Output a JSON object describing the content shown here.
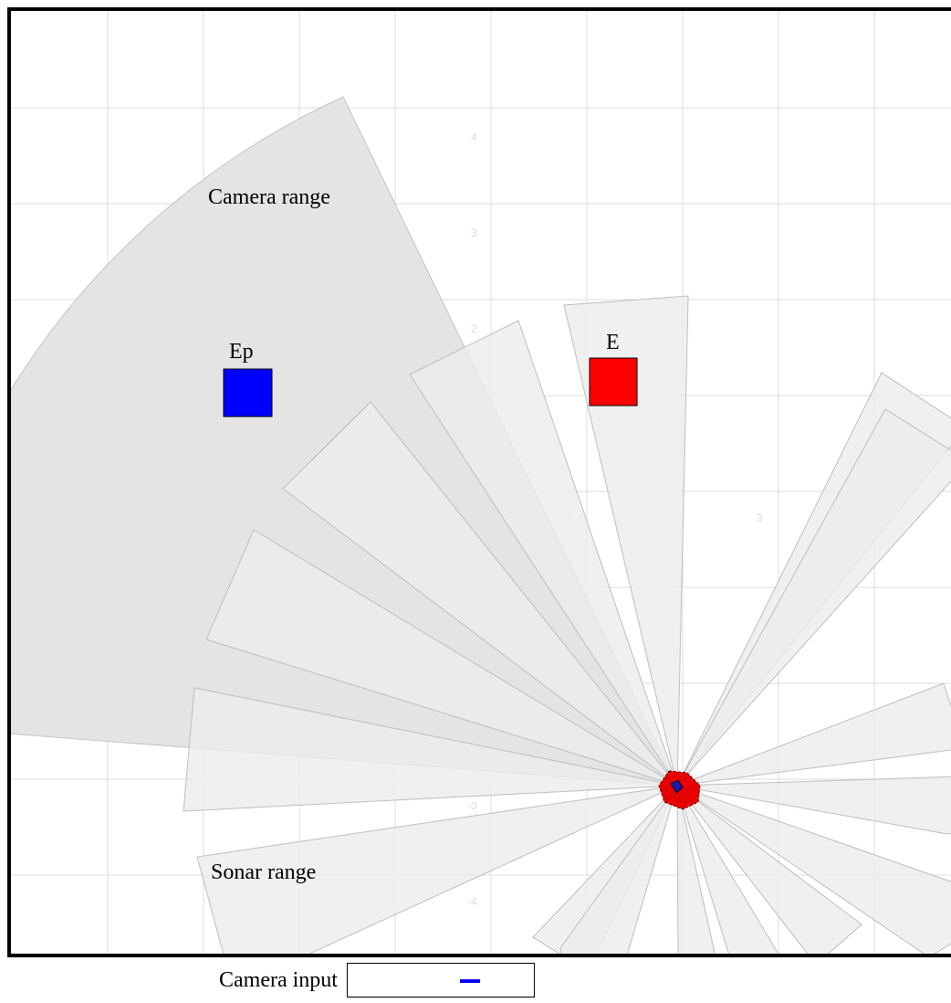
{
  "simulation": {
    "labels": {
      "camera_range": "Camera range",
      "sonar_range": "Sonar range",
      "entity_e": "E",
      "entity_ep": "Ep"
    },
    "x_ticks": [
      "-4",
      "-3",
      "-2",
      "-1",
      "0",
      "1",
      "2",
      "3",
      "4"
    ],
    "y_ticks": [
      "4",
      "3",
      "2",
      "1",
      "-1",
      "-2",
      "-3",
      "-4"
    ],
    "colors": {
      "entity_e": "#ff0000",
      "entity_ep": "#0000ff",
      "robot": "#e60000",
      "robot_marker": "#1a1aa6"
    }
  },
  "camera_input": {
    "label": "Camera input",
    "marker_color": "#0000ee"
  }
}
